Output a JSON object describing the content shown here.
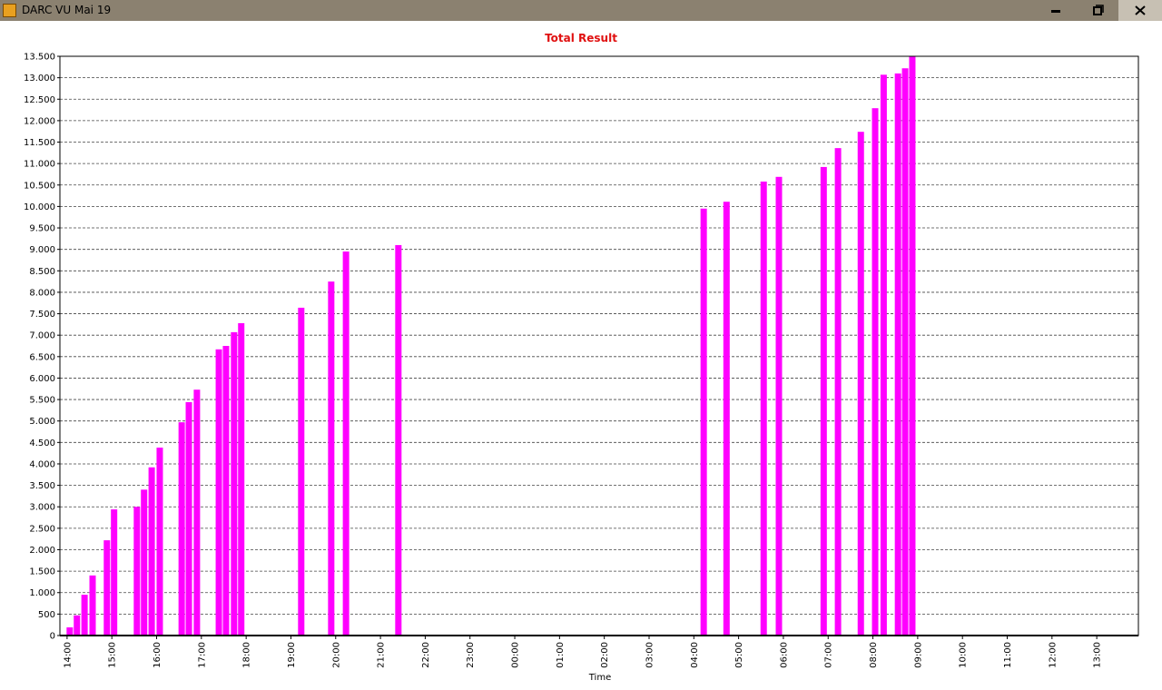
{
  "window": {
    "title": "DARC VU Mai 19"
  },
  "chart_data": {
    "type": "bar",
    "title": "Total Result",
    "x_label": "Time",
    "color": "#ff00ff",
    "grid": true,
    "x": [
      14.06,
      14.22,
      14.39,
      14.57,
      14.89,
      15.05,
      15.56,
      15.72,
      15.89,
      16.07,
      16.56,
      16.72,
      16.9,
      17.39,
      17.55,
      17.73,
      17.89,
      19.23,
      19.9,
      20.23,
      21.4,
      28.22,
      28.73,
      29.56,
      29.9,
      30.9,
      31.22,
      31.73,
      32.05,
      32.24,
      32.56,
      32.72,
      32.88
    ],
    "values": [
      190,
      470,
      950,
      1400,
      2220,
      2940,
      3000,
      3400,
      3920,
      4380,
      4970,
      5440,
      5730,
      6670,
      6750,
      7070,
      7280,
      7640,
      8250,
      8950,
      9100,
      9950,
      10110,
      10580,
      10690,
      10920,
      11360,
      11740,
      12290,
      13070,
      13100,
      13220,
      13500
    ],
    "xlim": [
      13.84,
      37.93
    ],
    "xticks": [
      {
        "value": 14,
        "label": "14:00"
      },
      {
        "value": 15,
        "label": "15:00"
      },
      {
        "value": 16,
        "label": "16:00"
      },
      {
        "value": 17,
        "label": "17:00"
      },
      {
        "value": 18,
        "label": "18:00"
      },
      {
        "value": 19,
        "label": "19:00"
      },
      {
        "value": 20,
        "label": "20:00"
      },
      {
        "value": 21,
        "label": "21:00"
      },
      {
        "value": 22,
        "label": "22:00"
      },
      {
        "value": 23,
        "label": "23:00"
      },
      {
        "value": 24,
        "label": "00:00"
      },
      {
        "value": 25,
        "label": "01:00"
      },
      {
        "value": 26,
        "label": "02:00"
      },
      {
        "value": 27,
        "label": "03:00"
      },
      {
        "value": 28,
        "label": "04:00"
      },
      {
        "value": 29,
        "label": "05:00"
      },
      {
        "value": 30,
        "label": "06:00"
      },
      {
        "value": 31,
        "label": "07:00"
      },
      {
        "value": 32,
        "label": "08:00"
      },
      {
        "value": 33,
        "label": "09:00"
      },
      {
        "value": 34,
        "label": "10:00"
      },
      {
        "value": 35,
        "label": "11:00"
      },
      {
        "value": 36,
        "label": "12:00"
      },
      {
        "value": 37,
        "label": "13:00"
      }
    ],
    "ylim": [
      0,
      13500
    ],
    "yticks": [
      0,
      500,
      {
        "value": 1000,
        "label": "1.000"
      },
      {
        "value": 1500,
        "label": "1.500"
      },
      {
        "value": 2000,
        "label": "2.000"
      },
      {
        "value": 2500,
        "label": "2.500"
      },
      {
        "value": 3000,
        "label": "3.000"
      },
      {
        "value": 3500,
        "label": "3.500"
      },
      {
        "value": 4000,
        "label": "4.000"
      },
      {
        "value": 4500,
        "label": "4.500"
      },
      {
        "value": 5000,
        "label": "5.000"
      },
      {
        "value": 5500,
        "label": "5.500"
      },
      {
        "value": 6000,
        "label": "6.000"
      },
      {
        "value": 6500,
        "label": "6.500"
      },
      {
        "value": 7000,
        "label": "7.000"
      },
      {
        "value": 7500,
        "label": "7.500"
      },
      {
        "value": 8000,
        "label": "8.000"
      },
      {
        "value": 8500,
        "label": "8.500"
      },
      {
        "value": 9000,
        "label": "9.000"
      },
      {
        "value": 9500,
        "label": "9.500"
      },
      {
        "value": 10000,
        "label": "10.000"
      },
      {
        "value": 10500,
        "label": "10.500"
      },
      {
        "value": 11000,
        "label": "11.000"
      },
      {
        "value": 11500,
        "label": "11.500"
      },
      {
        "value": 12000,
        "label": "12.000"
      },
      {
        "value": 12500,
        "label": "12.500"
      },
      {
        "value": 13000,
        "label": "13.000"
      },
      {
        "value": 13500,
        "label": "13.500"
      }
    ]
  }
}
